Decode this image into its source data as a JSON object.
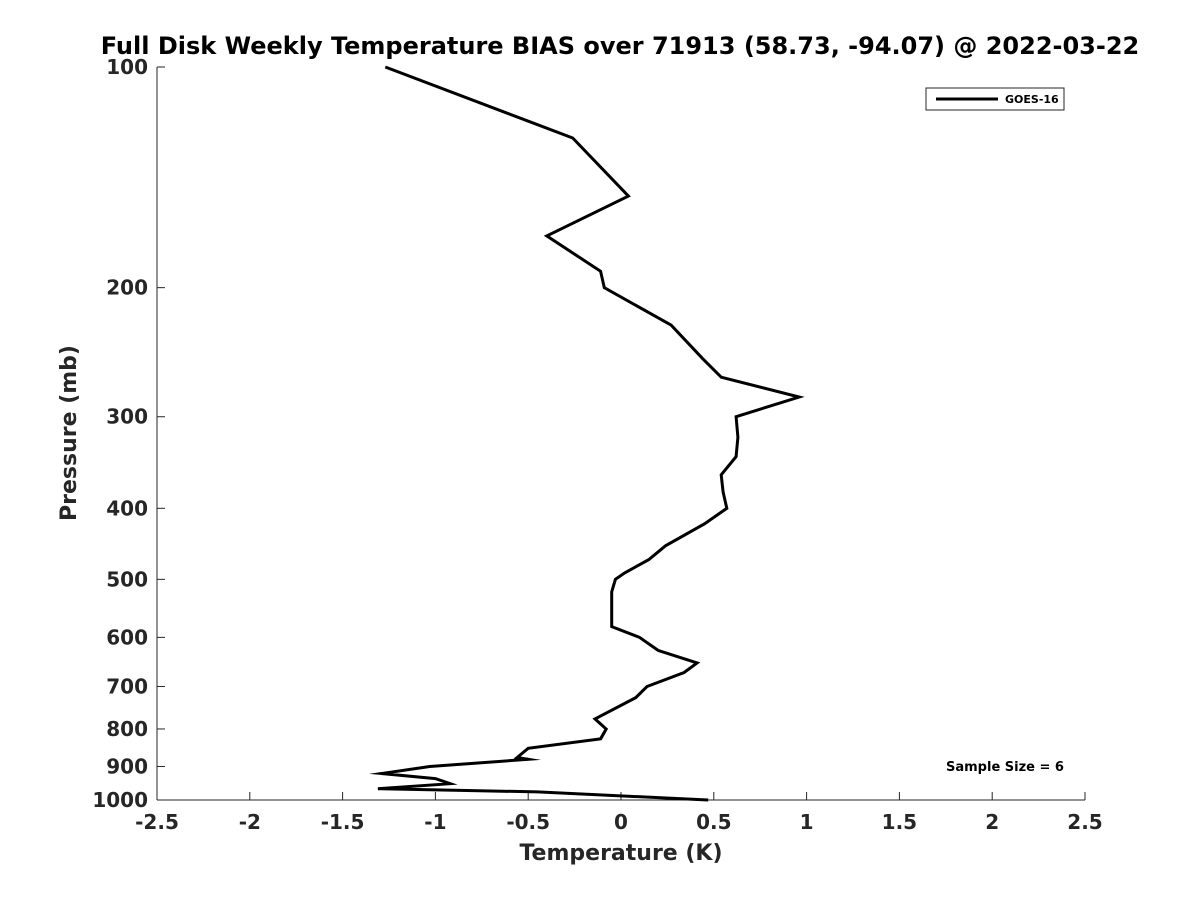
{
  "chart_data": {
    "type": "line",
    "title": "Full Disk Weekly Temperature BIAS over 71913 (58.73, -94.07) @ 2022-03-22",
    "xlabel": "Temperature (K)",
    "ylabel": "Pressure (mb)",
    "xlim": [
      -2.5,
      2.5
    ],
    "ylim": [
      100,
      1000
    ],
    "yscale": "log",
    "y_reversed": true,
    "grid": false,
    "legend_position": "top-right",
    "x_ticks": [
      -2.5,
      -2,
      -1.5,
      -1,
      -0.5,
      0,
      0.5,
      1,
      1.5,
      2,
      2.5
    ],
    "x_tick_labels": [
      "-2.5",
      "-2",
      "-1.5",
      "-1",
      "-0.5",
      "0",
      "0.5",
      "1",
      "1.5",
      "2",
      "2.5"
    ],
    "y_ticks": [
      100,
      200,
      300,
      400,
      500,
      600,
      700,
      800,
      900,
      1000
    ],
    "y_tick_labels": [
      "100",
      "200",
      "300",
      "400",
      "500",
      "600",
      "700",
      "800",
      "900",
      "1000"
    ],
    "series": [
      {
        "name": "GOES-16",
        "color": "#000000",
        "points": [
          {
            "x": -1.27,
            "y": 100
          },
          {
            "x": -0.26,
            "y": 125
          },
          {
            "x": 0.04,
            "y": 150
          },
          {
            "x": -0.4,
            "y": 170
          },
          {
            "x": -0.11,
            "y": 190
          },
          {
            "x": -0.09,
            "y": 200
          },
          {
            "x": 0.27,
            "y": 225
          },
          {
            "x": 0.44,
            "y": 250
          },
          {
            "x": 0.54,
            "y": 265
          },
          {
            "x": 0.96,
            "y": 282
          },
          {
            "x": 0.62,
            "y": 300
          },
          {
            "x": 0.63,
            "y": 320
          },
          {
            "x": 0.62,
            "y": 340
          },
          {
            "x": 0.54,
            "y": 360
          },
          {
            "x": 0.55,
            "y": 380
          },
          {
            "x": 0.57,
            "y": 400
          },
          {
            "x": 0.45,
            "y": 420
          },
          {
            "x": 0.24,
            "y": 450
          },
          {
            "x": 0.15,
            "y": 470
          },
          {
            "x": 0.02,
            "y": 490
          },
          {
            "x": -0.03,
            "y": 500
          },
          {
            "x": -0.05,
            "y": 520
          },
          {
            "x": -0.05,
            "y": 550
          },
          {
            "x": -0.05,
            "y": 580
          },
          {
            "x": 0.1,
            "y": 600
          },
          {
            "x": 0.2,
            "y": 625
          },
          {
            "x": 0.41,
            "y": 650
          },
          {
            "x": 0.34,
            "y": 670
          },
          {
            "x": 0.14,
            "y": 700
          },
          {
            "x": 0.08,
            "y": 725
          },
          {
            "x": -0.14,
            "y": 775
          },
          {
            "x": -0.08,
            "y": 800
          },
          {
            "x": -0.11,
            "y": 825
          },
          {
            "x": -0.5,
            "y": 850
          },
          {
            "x": -0.56,
            "y": 875
          },
          {
            "x": -0.5,
            "y": 880
          },
          {
            "x": -1.03,
            "y": 900
          },
          {
            "x": -1.29,
            "y": 920
          },
          {
            "x": -1.0,
            "y": 935
          },
          {
            "x": -0.92,
            "y": 950
          },
          {
            "x": -1.31,
            "y": 965
          },
          {
            "x": -0.45,
            "y": 975
          },
          {
            "x": 0.47,
            "y": 1000
          }
        ]
      }
    ],
    "annotation": "Sample Size = 6"
  }
}
